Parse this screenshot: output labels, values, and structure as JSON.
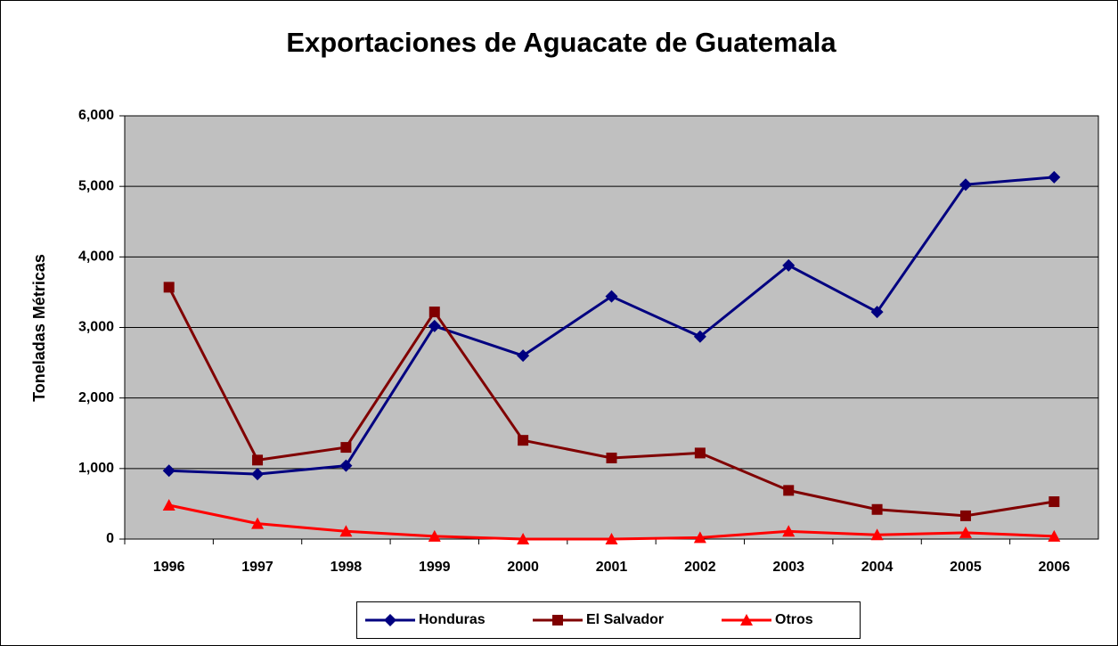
{
  "chart_data": {
    "type": "line",
    "title": "Exportaciones de Aguacate de Guatemala",
    "y_label": "Toneladas Métricas",
    "categories": [
      "1996",
      "1997",
      "1998",
      "1999",
      "2000",
      "2001",
      "2002",
      "2003",
      "2004",
      "2005",
      "2006"
    ],
    "series": [
      {
        "name": "Honduras",
        "color": "#000080",
        "marker": "diamond",
        "values": [
          970,
          920,
          1040,
          3020,
          2600,
          3440,
          2870,
          3880,
          3220,
          5025,
          5130
        ]
      },
      {
        "name": "El Salvador",
        "color": "#800000",
        "marker": "square",
        "values": [
          3570,
          1120,
          1300,
          3220,
          1400,
          1150,
          1220,
          690,
          420,
          330,
          530
        ]
      },
      {
        "name": "Otros",
        "color": "#ff0000",
        "marker": "triangle",
        "values": [
          480,
          220,
          110,
          40,
          0,
          0,
          20,
          110,
          60,
          90,
          40
        ]
      }
    ],
    "ylim": [
      0,
      6000
    ],
    "yticks": [
      0,
      {
        "value": 1000,
        "label": "1,000"
      },
      {
        "value": 2000,
        "label": "2,000"
      },
      {
        "value": 3000,
        "label": "3,000"
      },
      {
        "value": 4000,
        "label": "4,000"
      },
      {
        "value": 5000,
        "label": "5,000"
      },
      {
        "value": 6000,
        "label": "6,000"
      }
    ],
    "grid": true,
    "plot_background": "#c0c0c0",
    "legend": "bottom"
  }
}
